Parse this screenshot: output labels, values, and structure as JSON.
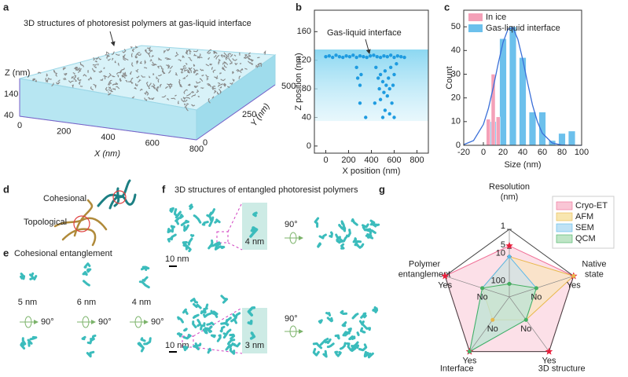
{
  "panels": {
    "a": {
      "label": "a",
      "title": "3D structures of photoresist polymers at gas-liquid interface",
      "z_title": "Z (nm)",
      "z_ticks": [
        140,
        40
      ],
      "x_title": "X (nm)",
      "x_ticks": [
        0,
        200,
        400,
        600,
        800
      ],
      "y_title": "Y (nm)",
      "y_ticks": [
        0,
        250,
        500
      ]
    },
    "b": {
      "label": "b"
    },
    "c": {
      "label": "c"
    },
    "d": {
      "label": "d",
      "top": "Cohesional",
      "bottom": "Topological"
    },
    "e": {
      "label": "e",
      "title": "Cohesional entanglement",
      "sizes": [
        "5 nm",
        "6 nm",
        "4 nm"
      ],
      "rotation": "90°"
    },
    "f": {
      "label": "f",
      "title": "3D structures of entangled photoresist polymers",
      "scale": "10 nm",
      "top_inset": "4 nm",
      "bottom_inset": "3 nm",
      "rotation": "90°"
    },
    "g": {
      "label": "g"
    }
  },
  "chart_data": [
    {
      "type": "scatter",
      "xlabel": "X position (nm)",
      "ylabel": "Z position (nm)",
      "annotation": "Gas-liquid interface",
      "color": "#1e9be0",
      "x": [
        0,
        30,
        60,
        90,
        120,
        150,
        180,
        210,
        240,
        270,
        300,
        330,
        360,
        390,
        420,
        450,
        480,
        510,
        540,
        570,
        600,
        630,
        660,
        690,
        270,
        280,
        300,
        310,
        440,
        460,
        470,
        480,
        500,
        510,
        520,
        530,
        540,
        550,
        560,
        570,
        580,
        520,
        560,
        600,
        620,
        590,
        430,
        300,
        350,
        500,
        600,
        480
      ],
      "y": [
        125,
        126,
        124,
        127,
        125,
        124,
        126,
        125,
        127,
        124,
        126,
        125,
        124,
        126,
        127,
        125,
        124,
        126,
        125,
        127,
        124,
        126,
        125,
        124,
        110,
        95,
        85,
        100,
        110,
        95,
        80,
        100,
        90,
        75,
        105,
        85,
        70,
        95,
        80,
        110,
        60,
        50,
        45,
        100,
        115,
        85,
        60,
        60,
        40,
        40,
        40,
        65
      ],
      "xlim": [
        -100,
        900
      ],
      "ylim": [
        -10,
        190
      ],
      "xticks": [
        0,
        200,
        400,
        600,
        800
      ],
      "yticks": [
        0,
        40,
        80,
        120,
        160
      ]
    },
    {
      "type": "bar",
      "xlabel": "Size (nm)",
      "ylabel": "Count",
      "series": [
        {
          "name": "In ice",
          "color": "#f4a0b8",
          "x": [
            5,
            10,
            15
          ],
          "values": [
            11,
            30,
            12
          ]
        },
        {
          "name": "Gas-liquid interface",
          "color": "#6cc0ec",
          "x": [
            10,
            20,
            30,
            40,
            50,
            60,
            70,
            80,
            90
          ],
          "values": [
            10,
            45,
            50,
            37,
            14,
            14,
            2,
            5,
            6
          ]
        },
        {
          "type": "line",
          "color": "#3a6fd8",
          "x": [
            -20,
            -10,
            0,
            5,
            10,
            15,
            20,
            25,
            30,
            35,
            40,
            45,
            50,
            55,
            60,
            70,
            80,
            90,
            100
          ],
          "values": [
            0.3,
            2,
            8.8,
            15.4,
            24.3,
            34.4,
            43.4,
            49,
            49.6,
            44.8,
            36.3,
            26.3,
            17,
            9.9,
            5.1,
            1,
            0.1,
            0,
            0
          ]
        }
      ],
      "xlim": [
        -20,
        100
      ],
      "ylim": [
        0,
        57
      ],
      "xticks": [
        -20,
        0,
        20,
        40,
        60,
        80,
        100
      ],
      "yticks": [
        0,
        10,
        20,
        30,
        40,
        50
      ]
    },
    {
      "type": "radar",
      "axes": [
        {
          "label": [
            "Resolution",
            "(nm)"
          ]
        },
        {
          "label": [
            "Native",
            "state"
          ],
          "ticks": [
            "No",
            "Yes"
          ]
        },
        {
          "label": [
            "3D structure"
          ],
          "ticks": [
            "No",
            "Yes"
          ]
        },
        {
          "label": [
            "Interface"
          ],
          "ticks": [
            "No",
            "Yes"
          ]
        },
        {
          "label": [
            "Polymer",
            "entanglement"
          ],
          "ticks": [
            "No",
            "Yes"
          ]
        }
      ],
      "rlim": [
        300,
        1
      ],
      "log": true,
      "rticks": [
        1,
        5,
        10,
        100
      ],
      "series": [
        {
          "name": "Cryo-ET",
          "color": "#f06d95",
          "fill": "#f9c6d5",
          "marker": "star",
          "values": [
            4,
            "Yes",
            "Yes",
            "Yes",
            "Yes"
          ]
        },
        {
          "name": "AFM",
          "color": "#e8b84a",
          "fill": "#f8e6b0",
          "values": [
            10,
            "Yes",
            "No",
            "No",
            "No"
          ]
        },
        {
          "name": "SEM",
          "color": "#5ab8ea",
          "fill": "#bfe2f5",
          "values": [
            10,
            "No",
            "No",
            "Yes",
            "No"
          ]
        },
        {
          "name": "QCM",
          "color": "#44b060",
          "fill": "#bfe5c6",
          "values": [
            100,
            "No",
            "No",
            "Yes",
            "No"
          ]
        }
      ]
    }
  ]
}
